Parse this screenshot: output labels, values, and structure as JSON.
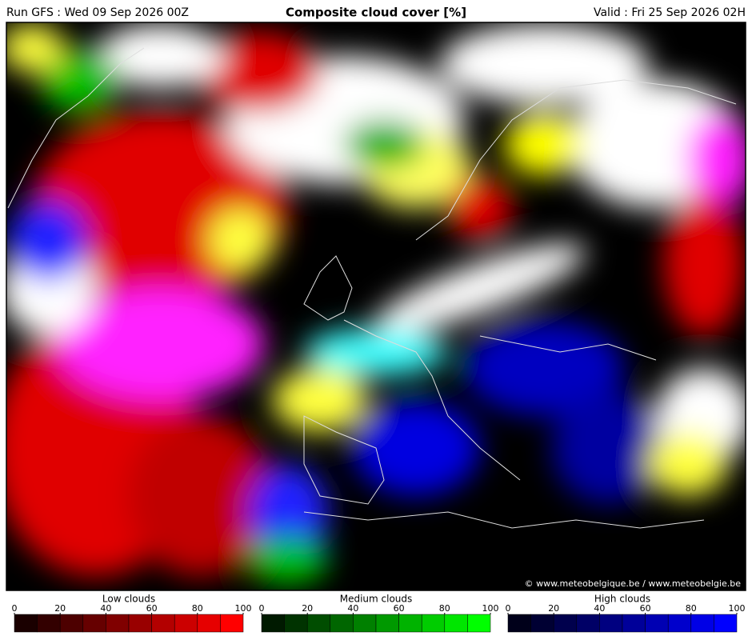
{
  "header": {
    "run": "Run GFS : Wed 09 Sep 2026 00Z",
    "title": "Composite cloud cover [%]",
    "valid": "Valid : Fri 25 Sep 2026 02H"
  },
  "credit": "© www.meteobelgique.be / www.meteobelgie.be",
  "legends": [
    {
      "title": "Low clouds",
      "ticks": [
        0,
        20,
        40,
        60,
        80,
        100
      ],
      "colors": [
        "#1a0000",
        "#330000",
        "#4d0000",
        "#660000",
        "#800000",
        "#990000",
        "#b30000",
        "#cc0000",
        "#e60000",
        "#ff0000"
      ]
    },
    {
      "title": "Medium clouds",
      "ticks": [
        0,
        20,
        40,
        60,
        80,
        100
      ],
      "colors": [
        "#001a00",
        "#003300",
        "#004d00",
        "#006600",
        "#008000",
        "#009900",
        "#00b300",
        "#00cc00",
        "#00e600",
        "#00ff00"
      ]
    },
    {
      "title": "High clouds",
      "ticks": [
        0,
        20,
        40,
        60,
        80,
        100
      ],
      "colors": [
        "#00001a",
        "#000033",
        "#00004d",
        "#000066",
        "#000080",
        "#000099",
        "#0000b3",
        "#0000cc",
        "#0000e6",
        "#0000ff"
      ]
    }
  ]
}
